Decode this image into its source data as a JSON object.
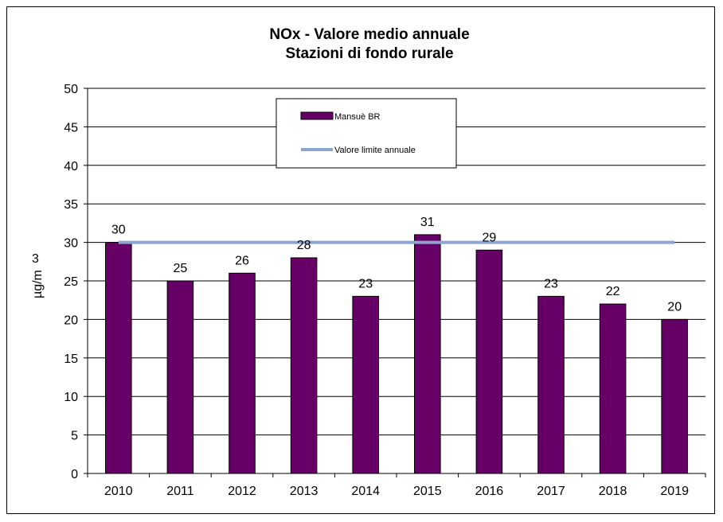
{
  "chart_data": {
    "type": "bar",
    "title": "NOx - Valore medio annuale",
    "subtitle": "Stazioni di fondo rurale",
    "ylabel": "µg/m³",
    "ylabel_parts": {
      "unit_top": "3",
      "unit_main": "µg/m"
    },
    "xlabel": "",
    "categories": [
      "2010",
      "2011",
      "2012",
      "2013",
      "2014",
      "2015",
      "2016",
      "2017",
      "2018",
      "2019"
    ],
    "series": [
      {
        "name": "Mansuè BR",
        "values": [
          30,
          25,
          26,
          28,
          23,
          31,
          29,
          23,
          22,
          20
        ],
        "color": "#660066"
      }
    ],
    "reference_line": {
      "name": "Valore limite annuale",
      "value": 30,
      "color": "#8EA4D0"
    },
    "ylim": [
      0,
      50
    ],
    "yticks": [
      0,
      5,
      10,
      15,
      20,
      25,
      30,
      35,
      40,
      45,
      50
    ],
    "grid": true,
    "legend_position": "top-center"
  }
}
